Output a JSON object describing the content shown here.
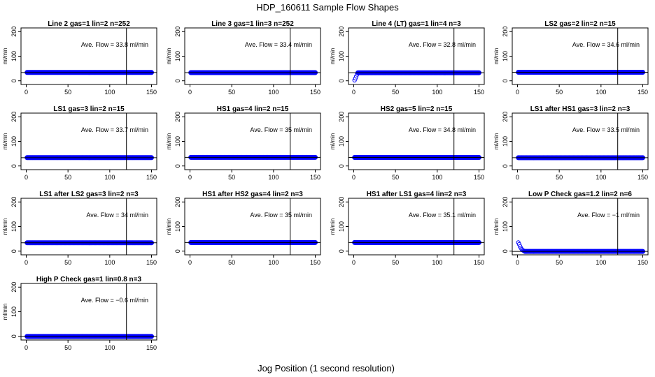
{
  "figure": {
    "title": "HDP_160611  Sample Flow Shapes",
    "xlabel": "Jog Position (1 second resolution)",
    "point_color": "#0000ff",
    "line_color": "#000000"
  },
  "chart_data": [
    {
      "type": "scatter",
      "title": "Line 2 gas=1 lin=2 n=252",
      "ylabel": "ml/min",
      "annotation": "Ave. Flow =  33.8  ml/min",
      "xlim": [
        0,
        150
      ],
      "ylim": [
        -15,
        215
      ],
      "xticks": [
        0,
        50,
        100,
        150
      ],
      "yticks": [
        0,
        100,
        200
      ],
      "vline": 120,
      "hline": 33.8,
      "x_range": [
        1,
        150
      ],
      "initial": []
    },
    {
      "type": "scatter",
      "title": "Line 3 gas=1 lin=3 n=252",
      "ylabel": "ml/min",
      "annotation": "Ave. Flow =  33.4  ml/min",
      "xlim": [
        0,
        150
      ],
      "ylim": [
        -15,
        215
      ],
      "xticks": [
        0,
        50,
        100,
        150
      ],
      "yticks": [
        0,
        100,
        200
      ],
      "vline": 120,
      "hline": 33.4,
      "x_range": [
        1,
        150
      ],
      "initial": []
    },
    {
      "type": "scatter",
      "title": "Line 4 (LT) gas=1 lin=4 n=3",
      "ylabel": "ml/min",
      "annotation": "Ave. Flow =  32.8  ml/min",
      "xlim": [
        0,
        150
      ],
      "ylim": [
        -15,
        215
      ],
      "xticks": [
        0,
        50,
        100,
        150
      ],
      "yticks": [
        0,
        100,
        200
      ],
      "vline": 120,
      "hline": 32.8,
      "x_range": [
        5,
        150
      ],
      "initial": [
        [
          1,
          2
        ],
        [
          2,
          10
        ],
        [
          3,
          18
        ],
        [
          4,
          26
        ]
      ]
    },
    {
      "type": "scatter",
      "title": "LS2 gas=2 lin=2 n=15",
      "ylabel": "ml/min",
      "annotation": "Ave. Flow =  34.6  ml/min",
      "xlim": [
        0,
        150
      ],
      "ylim": [
        -15,
        215
      ],
      "xticks": [
        0,
        50,
        100,
        150
      ],
      "yticks": [
        0,
        100,
        200
      ],
      "vline": 120,
      "hline": 34.6,
      "x_range": [
        1,
        150
      ],
      "initial": []
    },
    {
      "type": "scatter",
      "title": "LS1 gas=3 lin=2 n=15",
      "ylabel": "ml/min",
      "annotation": "Ave. Flow =  33.7  ml/min",
      "xlim": [
        0,
        150
      ],
      "ylim": [
        -15,
        215
      ],
      "xticks": [
        0,
        50,
        100,
        150
      ],
      "yticks": [
        0,
        100,
        200
      ],
      "vline": 120,
      "hline": 33.7,
      "x_range": [
        1,
        150
      ],
      "initial": []
    },
    {
      "type": "scatter",
      "title": "HS1 gas=4 lin=2 n=15",
      "ylabel": "ml/min",
      "annotation": "Ave. Flow =  35  ml/min",
      "xlim": [
        0,
        150
      ],
      "ylim": [
        -15,
        215
      ],
      "xticks": [
        0,
        50,
        100,
        150
      ],
      "yticks": [
        0,
        100,
        200
      ],
      "vline": 120,
      "hline": 35,
      "x_range": [
        1,
        150
      ],
      "initial": []
    },
    {
      "type": "scatter",
      "title": "HS2 gas=5 lin=2 n=15",
      "ylabel": "ml/min",
      "annotation": "Ave. Flow =  34.8  ml/min",
      "xlim": [
        0,
        150
      ],
      "ylim": [
        -15,
        215
      ],
      "xticks": [
        0,
        50,
        100,
        150
      ],
      "yticks": [
        0,
        100,
        200
      ],
      "vline": 120,
      "hline": 34.8,
      "x_range": [
        1,
        150
      ],
      "initial": []
    },
    {
      "type": "scatter",
      "title": "LS1 after HS1 gas=3 lin=2 n=3",
      "ylabel": "ml/min",
      "annotation": "Ave. Flow =  33.5  ml/min",
      "xlim": [
        0,
        150
      ],
      "ylim": [
        -15,
        215
      ],
      "xticks": [
        0,
        50,
        100,
        150
      ],
      "yticks": [
        0,
        100,
        200
      ],
      "vline": 120,
      "hline": 33.5,
      "x_range": [
        1,
        150
      ],
      "initial": []
    },
    {
      "type": "scatter",
      "title": "LS1 after LS2 gas=3 lin=2 n=3",
      "ylabel": "ml/min",
      "annotation": "Ave. Flow =  34  ml/min",
      "xlim": [
        0,
        150
      ],
      "ylim": [
        -15,
        215
      ],
      "xticks": [
        0,
        50,
        100,
        150
      ],
      "yticks": [
        0,
        100,
        200
      ],
      "vline": 120,
      "hline": 34,
      "x_range": [
        1,
        150
      ],
      "initial": []
    },
    {
      "type": "scatter",
      "title": "HS1 after HS2 gas=4 lin=2 n=3",
      "ylabel": "ml/min",
      "annotation": "Ave. Flow =  35  ml/min",
      "xlim": [
        0,
        150
      ],
      "ylim": [
        -15,
        215
      ],
      "xticks": [
        0,
        50,
        100,
        150
      ],
      "yticks": [
        0,
        100,
        200
      ],
      "vline": 120,
      "hline": 35,
      "x_range": [
        1,
        150
      ],
      "initial": []
    },
    {
      "type": "scatter",
      "title": "HS1 after LS1 gas=4 lin=2 n=3",
      "ylabel": "ml/min",
      "annotation": "Ave. Flow =  35.1  ml/min",
      "xlim": [
        0,
        150
      ],
      "ylim": [
        -15,
        215
      ],
      "xticks": [
        0,
        50,
        100,
        150
      ],
      "yticks": [
        0,
        100,
        200
      ],
      "vline": 120,
      "hline": 35.1,
      "x_range": [
        1,
        150
      ],
      "initial": []
    },
    {
      "type": "scatter",
      "title": "Low P Check gas=1.2 lin=2 n=6",
      "ylabel": "ml/min",
      "annotation": "Ave. Flow =  −1  ml/min",
      "xlim": [
        0,
        150
      ],
      "ylim": [
        -15,
        215
      ],
      "xticks": [
        0,
        50,
        100,
        150
      ],
      "yticks": [
        0,
        100,
        200
      ],
      "vline": 120,
      "hline": -1,
      "x_range": [
        9,
        150
      ],
      "initial": [
        [
          1,
          35
        ],
        [
          2,
          28
        ],
        [
          3,
          20
        ],
        [
          4,
          13
        ],
        [
          5,
          8
        ],
        [
          6,
          4
        ],
        [
          7,
          2
        ],
        [
          8,
          1
        ]
      ]
    },
    {
      "type": "scatter",
      "title": "High P Check gas=1 lin=0.8 n=3",
      "ylabel": "ml/min",
      "annotation": "Ave. Flow =  −0.6  ml/min",
      "xlim": [
        0,
        150
      ],
      "ylim": [
        -15,
        215
      ],
      "xticks": [
        0,
        50,
        100,
        150
      ],
      "yticks": [
        0,
        100,
        200
      ],
      "vline": 120,
      "hline": -0.6,
      "x_range": [
        1,
        150
      ],
      "initial": []
    }
  ]
}
